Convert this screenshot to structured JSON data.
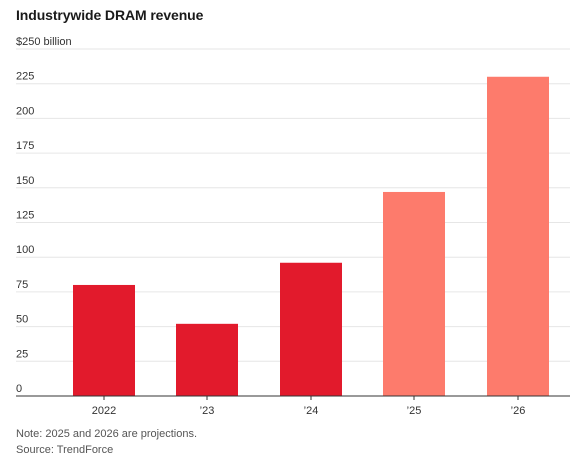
{
  "chart_data": {
    "type": "bar",
    "title": "Industrywide DRAM revenue",
    "ylim": [
      0,
      250
    ],
    "grid": true,
    "y_ticks": [
      {
        "value": 250,
        "label": "$250 billion"
      },
      {
        "value": 225,
        "label": "225"
      },
      {
        "value": 200,
        "label": "200"
      },
      {
        "value": 175,
        "label": "175"
      },
      {
        "value": 150,
        "label": "150"
      },
      {
        "value": 125,
        "label": "125"
      },
      {
        "value": 100,
        "label": "100"
      },
      {
        "value": 75,
        "label": "75"
      },
      {
        "value": 50,
        "label": "50"
      },
      {
        "value": 25,
        "label": "25"
      },
      {
        "value": 0,
        "label": "0"
      }
    ],
    "categories": [
      "2022",
      "’23",
      "’24",
      "’25",
      "’26"
    ],
    "values": [
      80,
      52,
      96,
      147,
      230
    ],
    "projected": [
      false,
      false,
      false,
      true,
      true
    ],
    "colors": {
      "actual": "#e21a2c",
      "projection": "#fd7b6c",
      "grid": "#e6e6e6",
      "axis": "#333333"
    }
  },
  "notes": {
    "note": "Note: 2025 and 2026 are projections.",
    "source": "Source: TrendForce"
  }
}
